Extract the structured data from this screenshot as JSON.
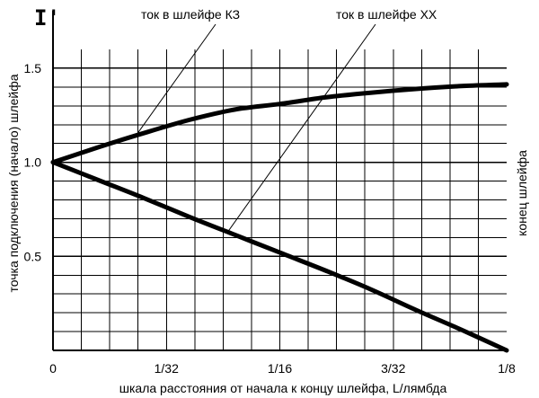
{
  "chart_data": {
    "type": "line",
    "x_ticks": [
      {
        "value": 0,
        "label": "0"
      },
      {
        "value": 0.03125,
        "label": "1/32"
      },
      {
        "value": 0.0625,
        "label": "1/16"
      },
      {
        "value": 0.09375,
        "label": "3/32"
      },
      {
        "value": 0.125,
        "label": "1/8"
      }
    ],
    "y_ticks": [
      {
        "value": 0.5,
        "label": "0.5"
      },
      {
        "value": 1.0,
        "label": "1.0"
      },
      {
        "value": 1.5,
        "label": "1.5"
      }
    ],
    "xlim": [
      0,
      0.125
    ],
    "ylim": [
      0,
      1.6
    ],
    "grid": true,
    "xlabel": "шкала расстояния от начала к концу шлейфа, L/лямбда",
    "ylabel": "точка подключения (начало) шлейфа",
    "ylabel_top": "I'",
    "right_label": "конец шлейфа",
    "series": [
      {
        "name": "ток в шлейфе КЗ",
        "x": [
          0,
          0.0125,
          0.025,
          0.0375,
          0.05,
          0.0625,
          0.075,
          0.0875,
          0.1,
          0.1125,
          0.125
        ],
        "y": [
          1.0,
          1.08,
          1.155,
          1.225,
          1.28,
          1.31,
          1.345,
          1.37,
          1.39,
          1.405,
          1.414
        ]
      },
      {
        "name": "ток в шлейфе ХХ",
        "x": [
          0,
          0.0125,
          0.025,
          0.0375,
          0.05,
          0.0625,
          0.075,
          0.0875,
          0.1,
          0.1125,
          0.125
        ],
        "y": [
          1.0,
          0.905,
          0.81,
          0.71,
          0.615,
          0.52,
          0.425,
          0.325,
          0.215,
          0.11,
          0.0
        ]
      }
    ]
  }
}
